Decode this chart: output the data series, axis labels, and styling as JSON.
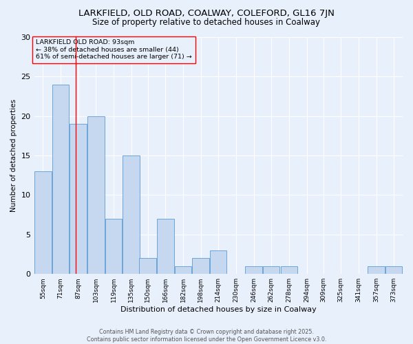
{
  "title1": "LARKFIELD, OLD ROAD, COALWAY, COLEFORD, GL16 7JN",
  "title2": "Size of property relative to detached houses in Coalway",
  "xlabel": "Distribution of detached houses by size in Coalway",
  "ylabel": "Number of detached properties",
  "footnote1": "Contains HM Land Registry data © Crown copyright and database right 2025.",
  "footnote2": "Contains public sector information licensed under the Open Government Licence v3.0.",
  "annotation_line1": "LARKFIELD OLD ROAD: 93sqm",
  "annotation_line2": "← 38% of detached houses are smaller (44)",
  "annotation_line3": "61% of semi-detached houses are larger (71) →",
  "bar_color": "#c5d8f0",
  "bar_edge_color": "#5b9bd5",
  "red_line_x": 93,
  "categories": [
    55,
    71,
    87,
    103,
    119,
    135,
    150,
    166,
    182,
    198,
    214,
    230,
    246,
    262,
    278,
    294,
    309,
    325,
    341,
    357,
    373
  ],
  "values": [
    13,
    24,
    19,
    20,
    7,
    15,
    2,
    7,
    1,
    2,
    3,
    0,
    1,
    1,
    1,
    0,
    0,
    0,
    0,
    1,
    1
  ],
  "ylim": [
    0,
    30
  ],
  "yticks": [
    0,
    5,
    10,
    15,
    20,
    25,
    30
  ],
  "background_color": "#e8f0fb",
  "grid_color": "#ffffff",
  "title_fontsize": 9.5,
  "subtitle_fontsize": 8.5
}
